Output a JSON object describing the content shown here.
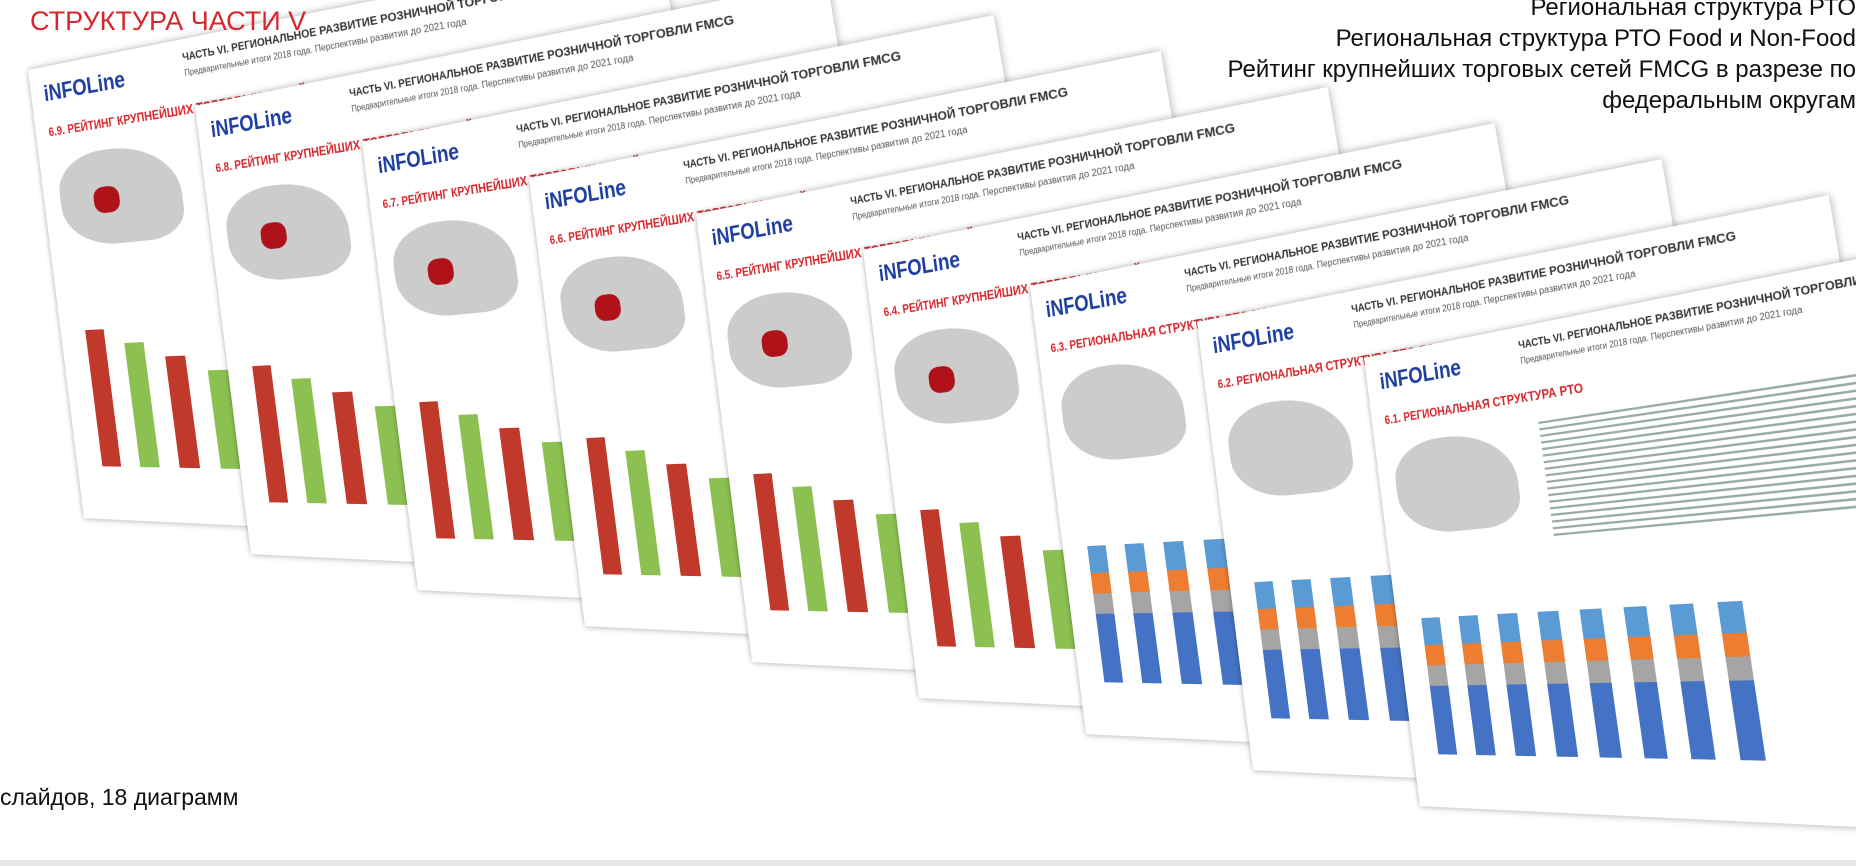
{
  "heading": "СТРУКТУРА ЧАСТИ V",
  "contents": [
    "Региональная структура РТО",
    "Региональная структура РТО Food и Non-Food",
    "Рейтинг крупнейших торговых сетей FMCG в разрезе по",
    "федеральным округам"
  ],
  "footer": "слайдов, 18 диаграмм",
  "slide_header": "ЧАСТЬ VI. РЕГИОНАЛЬНОЕ РАЗВИТИЕ РОЗНИЧНОЙ ТОРГОВЛИ FMCG",
  "slide_subheader": "Предварительные итоги 2018 года. Перспективы развития до 2021 года",
  "logo": "iNFOLine",
  "slides": [
    "6.9. РЕЙТИНГ КРУПНЕЙШИХ ТОРГОВЫХ СЕТЕЙ FMCG В СИБИРСКОМ ФО (СФО) И ДАЛЬНЕВОСТОЧНОМ ФО (ДФО)",
    "6.8. РЕЙТИНГ КРУПНЕЙШИХ ТОРГОВЫХ СЕТЕЙ FMCG В ЮЖНОМ ФО (ЮФО) И СЕВЕРО-КАВКАЗСКОМ ФО (СКФО)",
    "6.7. РЕЙТИНГ КРУПНЕЙШИХ ТОРГОВЫХ СЕТЕЙ FMCG В УРАЛЬСКОМ ФЕДЕРАЛЬНОМ ОКРУГЕ (УФО)",
    "6.6. РЕЙТИНГ КРУПНЕЙШИХ ТОРГОВЫХ СЕТЕЙ FMCG В ПРИВОЛЖСКОМ ФЕДЕРАЛЬНОМ ОКРУГЕ (ПФО)",
    "6.5. РЕЙТИНГ КРУПНЕЙШИХ ТОРГОВЫХ СЕТЕЙ FMCG В СЕВЕРО-ЗАПАДНОМ ФЕДЕРАЛЬНОМ ОКРУГЕ (СЗФО)",
    "6.4. РЕЙТИНГ КРУПНЕЙШИХ ТОРГОВЫХ СЕТЕЙ FMCG В ЦЕНТРАЛЬНОМ ФЕДЕРАЛЬНОМ ОКРУГЕ (ЦФО)",
    "6.3. РЕГИОНАЛЬНАЯ СТРУКТУРА РТО NON-FOOD",
    "6.2. РЕГИОНАЛЬНАЯ СТРУКТУРА РТО FOOD",
    "6.1. РЕГИОНАЛЬНАЯ СТРУКТУРА РТО"
  ]
}
